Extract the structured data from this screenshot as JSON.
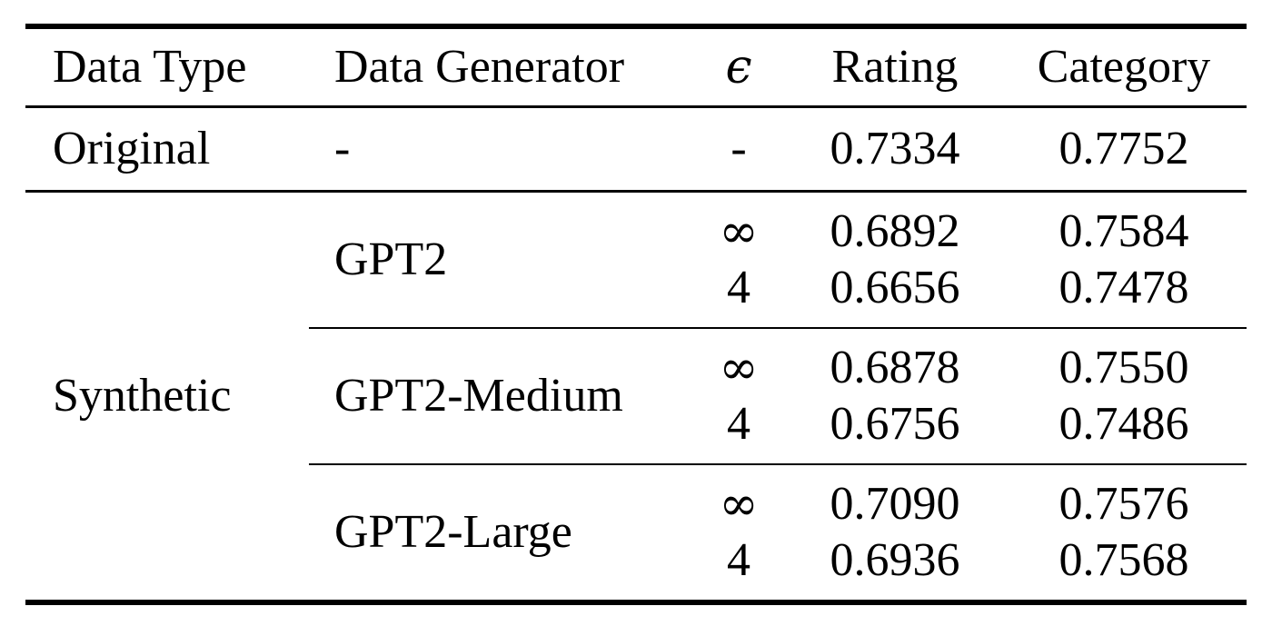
{
  "table": {
    "columns": [
      "Data Type",
      "Data Generator",
      "ϵ",
      "Rating",
      "Category"
    ],
    "rows": {
      "original": {
        "data_type": "Original",
        "data_generator": "-",
        "epsilon": "-",
        "rating": "0.7334",
        "category": "0.7752"
      },
      "synthetic": {
        "data_type": "Synthetic",
        "groups": [
          {
            "data_generator": "GPT2",
            "entries": [
              {
                "epsilon": "∞",
                "rating": "0.6892",
                "category": "0.7584"
              },
              {
                "epsilon": "4",
                "rating": "0.6656",
                "category": "0.7478"
              }
            ]
          },
          {
            "data_generator": "GPT2-Medium",
            "entries": [
              {
                "epsilon": "∞",
                "rating": "0.6878",
                "category": "0.7550"
              },
              {
                "epsilon": "4",
                "rating": "0.6756",
                "category": "0.7486"
              }
            ]
          },
          {
            "data_generator": "GPT2-Large",
            "entries": [
              {
                "epsilon": "∞",
                "rating": "0.7090",
                "category": "0.7576"
              },
              {
                "epsilon": "4",
                "rating": "0.6936",
                "category": "0.7568"
              }
            ]
          }
        ]
      }
    },
    "colors": {
      "rule_color": "#000000",
      "text_color": "#000000",
      "background": "#ffffff"
    }
  },
  "chart_data": {
    "type": "table",
    "columns": [
      "Data Type",
      "Data Generator",
      "ϵ",
      "Rating",
      "Category"
    ],
    "rows": [
      [
        "Original",
        "-",
        "-",
        "0.7334",
        "0.7752"
      ],
      [
        "Synthetic",
        "GPT2",
        "∞",
        "0.6892",
        "0.7584"
      ],
      [
        "Synthetic",
        "GPT2",
        "4",
        "0.6656",
        "0.7478"
      ],
      [
        "Synthetic",
        "GPT2-Medium",
        "∞",
        "0.6878",
        "0.7550"
      ],
      [
        "Synthetic",
        "GPT2-Medium",
        "4",
        "0.6756",
        "0.7486"
      ],
      [
        "Synthetic",
        "GPT2-Large",
        "∞",
        "0.7090",
        "0.7576"
      ],
      [
        "Synthetic",
        "GPT2-Large",
        "4",
        "0.6936",
        "0.7568"
      ]
    ]
  }
}
